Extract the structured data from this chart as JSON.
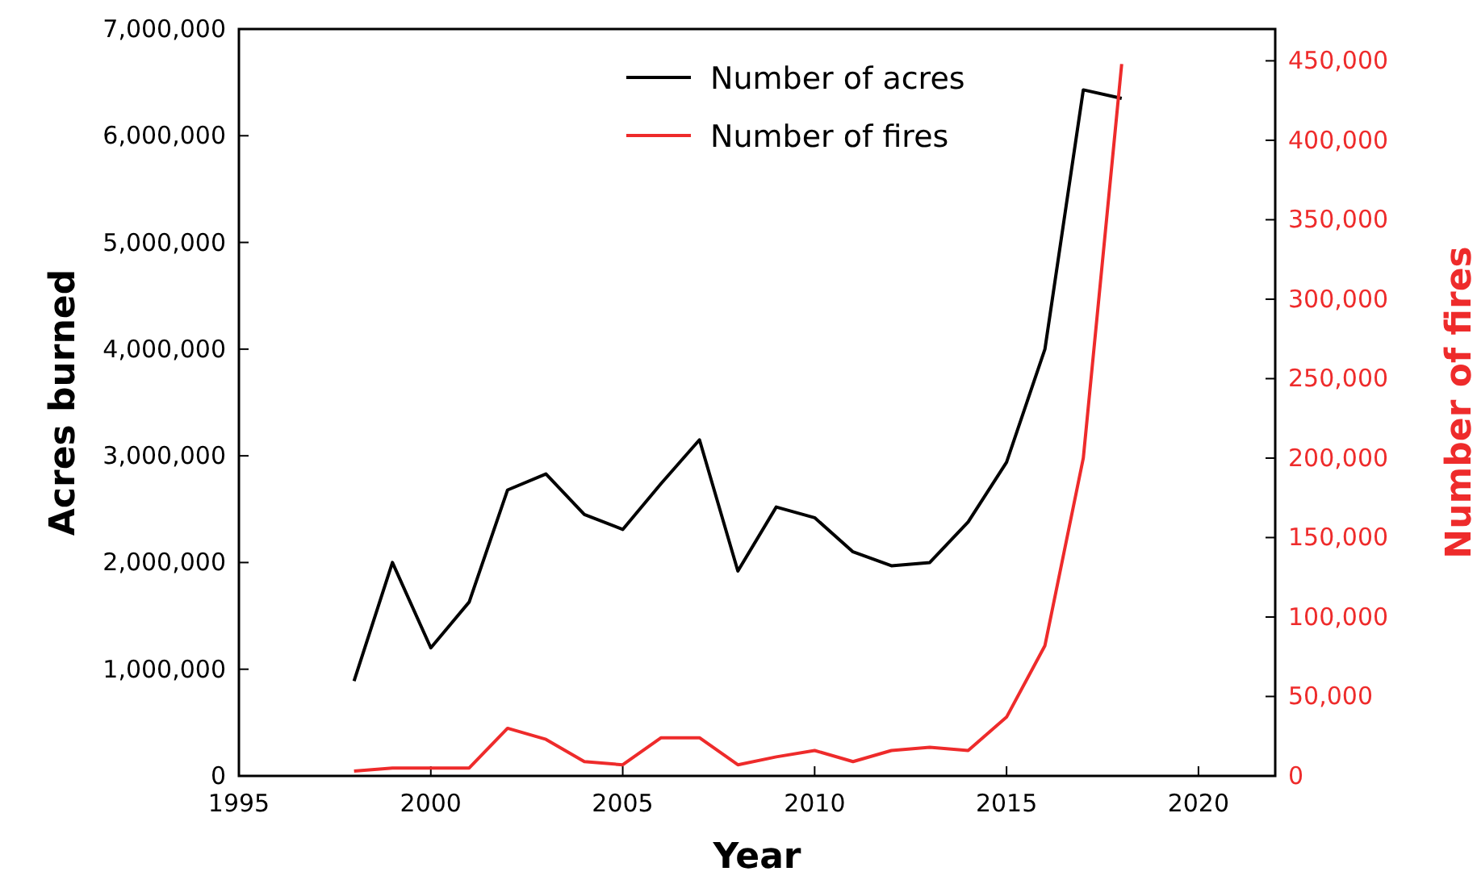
{
  "chart_data": {
    "type": "line",
    "xlabel": "Year",
    "ylabel": "Acres burned",
    "y2label": "Number of fires",
    "xlim": [
      1995,
      2022
    ],
    "xticks": [
      1995,
      2000,
      2005,
      2010,
      2015,
      2020
    ],
    "ylim": [
      0,
      7000000
    ],
    "yticks": [
      {
        "value": 0,
        "label": "0"
      },
      {
        "value": 1000000,
        "label": "1,000,000"
      },
      {
        "value": 2000000,
        "label": "2,000,000"
      },
      {
        "value": 3000000,
        "label": "3,000,000"
      },
      {
        "value": 4000000,
        "label": "4,000,000"
      },
      {
        "value": 5000000,
        "label": "5,000,000"
      },
      {
        "value": 6000000,
        "label": "6,000,000"
      },
      {
        "value": 7000000,
        "label": "7,000,000"
      }
    ],
    "y2lim": [
      0,
      470000
    ],
    "y2ticks": [
      {
        "value": 0,
        "label": "0"
      },
      {
        "value": 50000,
        "label": "50,000"
      },
      {
        "value": 100000,
        "label": "100,000"
      },
      {
        "value": 150000,
        "label": "150,000"
      },
      {
        "value": 200000,
        "label": "200,000"
      },
      {
        "value": 250000,
        "label": "250,000"
      },
      {
        "value": 300000,
        "label": "300,000"
      },
      {
        "value": 350000,
        "label": "350,000"
      },
      {
        "value": 400000,
        "label": "400,000"
      },
      {
        "value": 450000,
        "label": "450,000"
      }
    ],
    "x": [
      1998,
      1999,
      2000,
      2001,
      2002,
      2003,
      2004,
      2005,
      2006,
      2007,
      2008,
      2009,
      2010,
      2011,
      2012,
      2013,
      2014,
      2015,
      2016,
      2017,
      2018
    ],
    "legend": "top",
    "grid": false,
    "series": [
      {
        "name": "Number of acres",
        "color": "#000000",
        "values": [
          890000,
          2000000,
          1200000,
          1630000,
          2680000,
          2830000,
          2450000,
          2310000,
          2740000,
          3150000,
          1920000,
          2520000,
          2420000,
          2100000,
          1970000,
          2000000,
          2380000,
          2940000,
          4000000,
          6430000,
          6350000
        ]
      },
      {
        "name": "Number of fires",
        "color": "#ee2b2b",
        "axis": "y2",
        "values": [
          3000,
          5000,
          5000,
          5000,
          30000,
          23000,
          9000,
          7000,
          24000,
          24000,
          7000,
          12000,
          16000,
          9000,
          16000,
          18000,
          16000,
          37000,
          82000,
          200000,
          448000
        ]
      }
    ]
  }
}
